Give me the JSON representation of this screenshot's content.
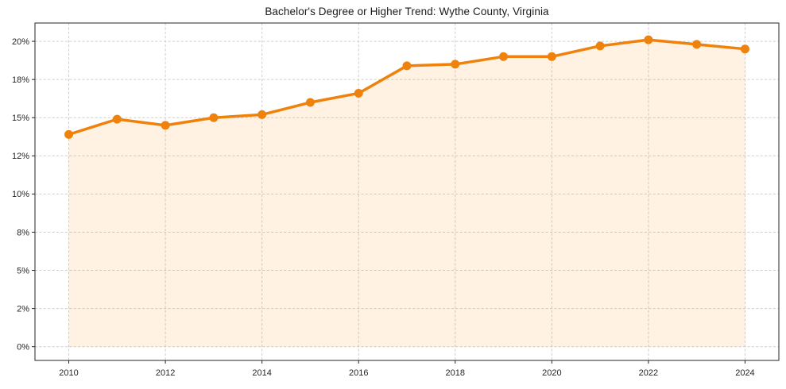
{
  "chart_data": {
    "type": "area",
    "title": "Bachelor's Degree or Higher Trend: Wythe County, Virginia",
    "xlabel": "",
    "ylabel": "",
    "series_name": "Bachelor's Degree or Higher (%)",
    "x": [
      2010,
      2011,
      2012,
      2013,
      2014,
      2015,
      2016,
      2017,
      2018,
      2019,
      2020,
      2021,
      2022,
      2023,
      2024
    ],
    "values": [
      13.9,
      14.9,
      14.5,
      15.0,
      15.2,
      16.0,
      16.6,
      18.4,
      18.5,
      19.0,
      19.0,
      19.7,
      20.1,
      19.8,
      19.5
    ],
    "x_ticks": [
      {
        "value": 2010,
        "label": "2010"
      },
      {
        "value": 2012,
        "label": "2012"
      },
      {
        "value": 2014,
        "label": "2014"
      },
      {
        "value": 2016,
        "label": "2016"
      },
      {
        "value": 2018,
        "label": "2018"
      },
      {
        "value": 2020,
        "label": "2020"
      },
      {
        "value": 2022,
        "label": "2022"
      },
      {
        "value": 2024,
        "label": "2024"
      }
    ],
    "y_ticks": [
      {
        "value": 0,
        "label": "0%"
      },
      {
        "value": 2.5,
        "label": "2%"
      },
      {
        "value": 5,
        "label": "5%"
      },
      {
        "value": 7.5,
        "label": "8%"
      },
      {
        "value": 10,
        "label": "10%"
      },
      {
        "value": 12.5,
        "label": "12%"
      },
      {
        "value": 15,
        "label": "15%"
      },
      {
        "value": 17.5,
        "label": "18%"
      },
      {
        "value": 20,
        "label": "20%"
      }
    ],
    "xlim": [
      2009.3,
      2024.7
    ],
    "ylim": [
      -0.9,
      21.2
    ],
    "grid": true,
    "legend": "none",
    "colors": {
      "line": "#ef820d",
      "marker": "#ef820d",
      "fill": "rgba(255,140,0,0.11)",
      "grid": "#cfcfcf",
      "spine": "#262626",
      "tick_label": "#262626",
      "title": "#1a1a1a",
      "background": "#ffffff"
    }
  }
}
